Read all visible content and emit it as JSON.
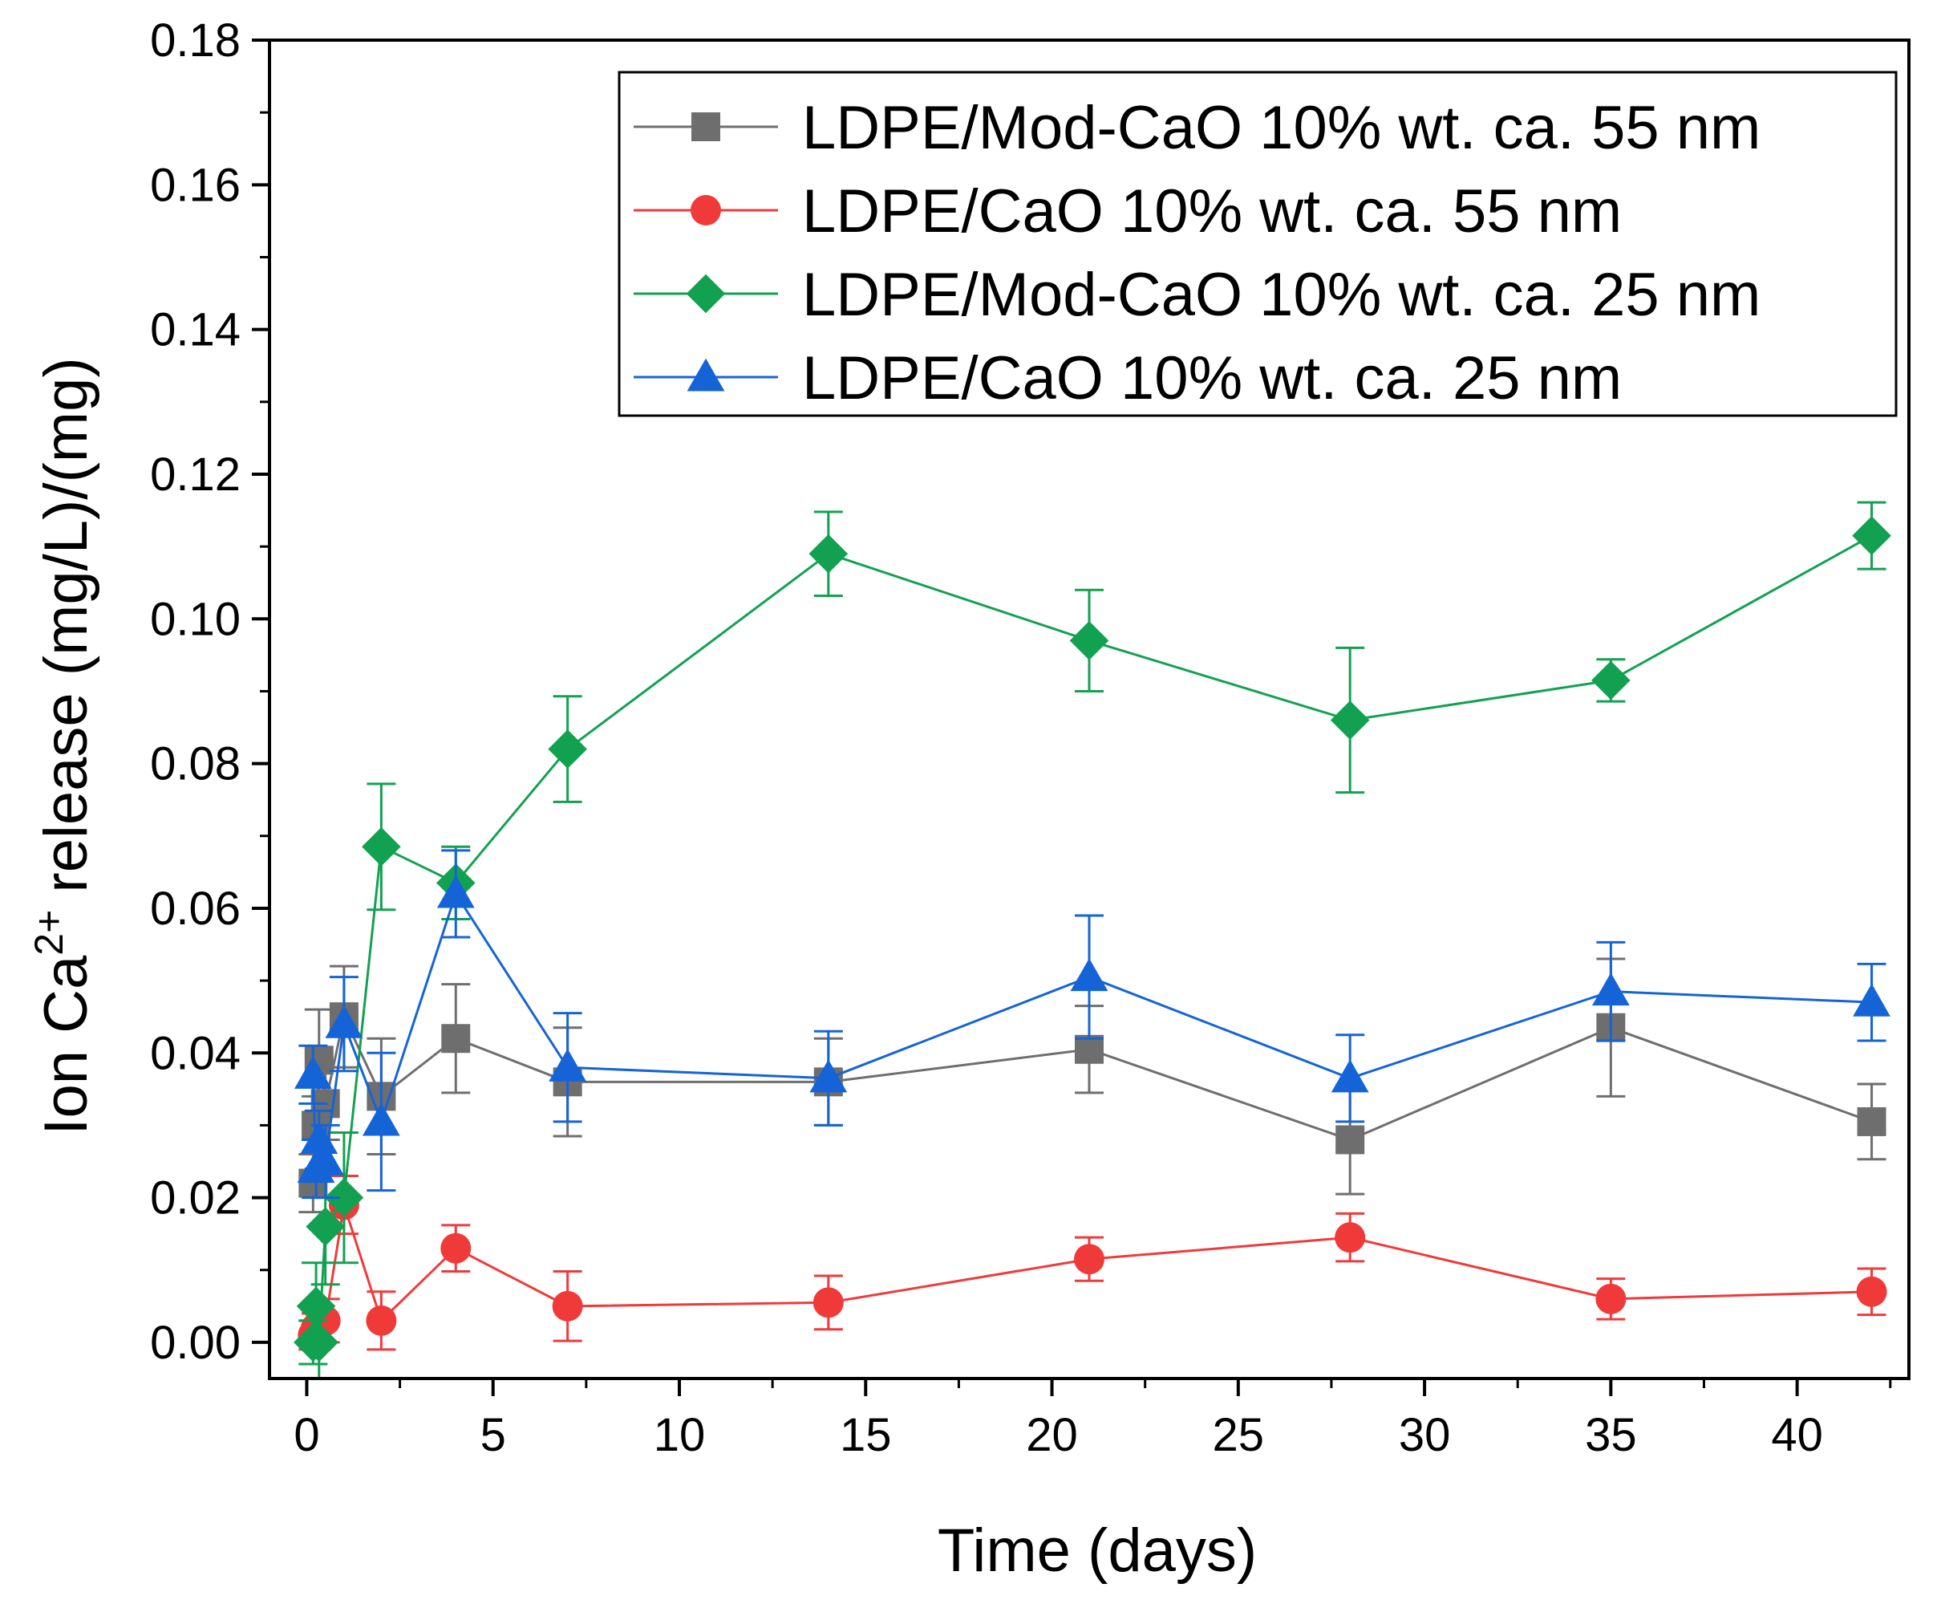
{
  "chart_data": {
    "type": "line",
    "xlabel": "Time (days)",
    "ylabel": {
      "prefix": "Ion Ca",
      "superscript": "2+",
      "suffix": " release (mg/L)/(mg)"
    },
    "xlim": [
      -1,
      43
    ],
    "ylim": [
      -0.005,
      0.18
    ],
    "xticks": [
      0,
      5,
      10,
      15,
      20,
      25,
      30,
      35,
      40
    ],
    "xtick_labels": [
      "0",
      "5",
      "10",
      "15",
      "20",
      "25",
      "30",
      "35",
      "40"
    ],
    "yticks": [
      0.0,
      0.02,
      0.04,
      0.06,
      0.08,
      0.1,
      0.12,
      0.14,
      0.16,
      0.18
    ],
    "ytick_labels": [
      "0.00",
      "0.02",
      "0.04",
      "0.06",
      "0.08",
      "0.10",
      "0.12",
      "0.14",
      "0.16",
      "0.18"
    ],
    "legend_position": "top-right",
    "series": [
      {
        "name": "LDPE/Mod-CaO 10% wt. ca. 55 nm",
        "color": "#6e6e6e",
        "marker": "square",
        "x": [
          0.17,
          0.25,
          0.33,
          0.5,
          1,
          2,
          4,
          7,
          14,
          21,
          28,
          35,
          42
        ],
        "y": [
          0.022,
          0.03,
          0.039,
          0.033,
          0.045,
          0.034,
          0.042,
          0.036,
          0.036,
          0.0405,
          0.028,
          0.0435,
          0.0305
        ],
        "err": [
          0.004,
          0.004,
          0.007,
          0.005,
          0.007,
          0.008,
          0.0075,
          0.0075,
          0.006,
          0.006,
          0.0075,
          0.0095,
          0.0052
        ]
      },
      {
        "name": "LDPE/CaO 10% wt. ca. 55 nm",
        "color": "#f03a3a",
        "marker": "circle",
        "x": [
          0.17,
          0.25,
          0.33,
          0.5,
          1,
          2,
          4,
          7,
          14,
          21,
          28,
          35,
          42
        ],
        "y": [
          0.001,
          0.002,
          0.0025,
          0.003,
          0.019,
          0.003,
          0.013,
          0.005,
          0.0055,
          0.0115,
          0.0145,
          0.006,
          0.007
        ],
        "err": [
          0.002,
          0.002,
          0.002,
          0.003,
          0.004,
          0.004,
          0.0032,
          0.0048,
          0.0037,
          0.003,
          0.0033,
          0.0028,
          0.0032
        ]
      },
      {
        "name": "LDPE/Mod-CaO 10% wt. ca. 25 nm",
        "color": "#12a150",
        "marker": "diamond",
        "x": [
          0.17,
          0.25,
          0.33,
          0.5,
          1,
          2,
          4,
          7,
          14,
          21,
          28,
          35,
          42
        ],
        "y": [
          0.0,
          0.005,
          0.0,
          0.016,
          0.02,
          0.0685,
          0.0635,
          0.082,
          0.109,
          0.097,
          0.086,
          0.0915,
          0.1115
        ],
        "err": [
          0.003,
          0.006,
          0.005,
          0.008,
          0.009,
          0.0087,
          0.005,
          0.0073,
          0.0058,
          0.007,
          0.01,
          0.0029,
          0.0046
        ]
      },
      {
        "name": "LDPE/CaO 10% wt. ca. 25 nm",
        "color": "#1464d8",
        "marker": "triangle",
        "x": [
          0.17,
          0.25,
          0.33,
          0.5,
          1,
          2,
          4,
          7,
          14,
          21,
          28,
          35,
          42
        ],
        "y": [
          0.037,
          0.024,
          0.028,
          0.025,
          0.044,
          0.0305,
          0.062,
          0.038,
          0.0365,
          0.0505,
          0.0365,
          0.0485,
          0.047
        ],
        "err": [
          0.004,
          0.004,
          0.004,
          0.005,
          0.0065,
          0.0095,
          0.006,
          0.0075,
          0.0065,
          0.0085,
          0.006,
          0.0068,
          0.0053
        ]
      }
    ]
  }
}
